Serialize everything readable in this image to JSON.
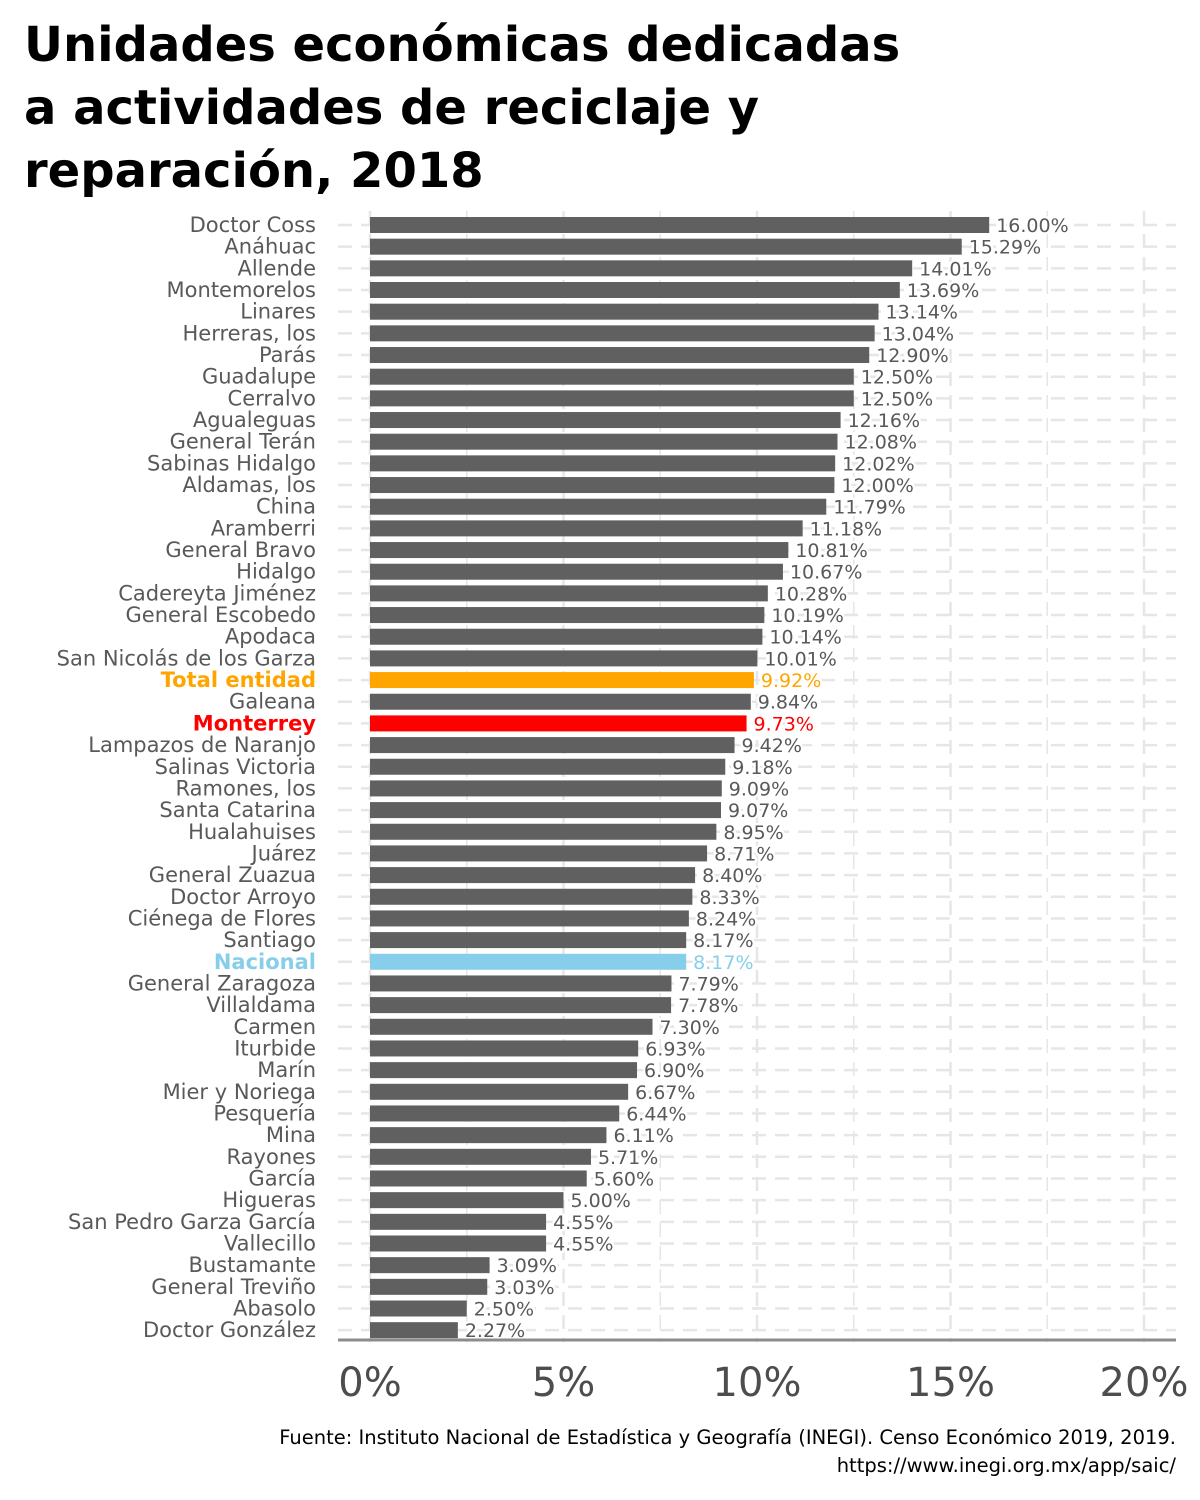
{
  "title_lines": [
    "Unidades económicas dedicadas",
    "a actividades de reciclaje y",
    "reparación, 2018"
  ],
  "source_lines": [
    "Fuente: Instituto Nacional de Estadística y Geografía (INEGI). Censo Económico 2019, 2019.",
    "https://www.inegi.org.mx/app/saic/"
  ],
  "colors": {
    "default_bar": "#606060",
    "default_label": "#595959",
    "total_entidad": "#FFA500",
    "monterrey": "#FF0000",
    "nacional": "#87CEEB",
    "grid": "#e6e6e6",
    "axis": "#8c8c8c",
    "tick_text": "#4d4d4d"
  },
  "chart_data": {
    "type": "bar",
    "orientation": "horizontal",
    "xlim": [
      0,
      20
    ],
    "x_ticks": [
      0,
      5,
      10,
      15,
      20
    ],
    "x_tick_labels": [
      "0%",
      "5%",
      "10%",
      "15%",
      "20%"
    ],
    "xlabel": "",
    "ylabel": "",
    "grid": true,
    "categories": [
      "Doctor Coss",
      "Anáhuac",
      "Allende",
      "Montemorelos",
      "Linares",
      "Herreras, los",
      "Parás",
      "Guadalupe",
      "Cerralvo",
      "Agualeguas",
      "General Terán",
      "Sabinas Hidalgo",
      "Aldamas, los",
      "China",
      "Aramberri",
      "General Bravo",
      "Hidalgo",
      "Cadereyta Jiménez",
      "General Escobedo",
      "Apodaca",
      "San Nicolás de los Garza",
      "Total entidad",
      "Galeana",
      "Monterrey",
      "Lampazos de Naranjo",
      "Salinas Victoria",
      "Ramones, los",
      "Santa Catarina",
      "Hualahuises",
      "Juárez",
      "General Zuazua",
      "Doctor Arroyo",
      "Ciénega de Flores",
      "Santiago",
      "Nacional",
      "General Zaragoza",
      "Villaldama",
      "Carmen",
      "Iturbide",
      "Marín",
      "Mier y Noriega",
      "Pesquería",
      "Mina",
      "Rayones",
      "García",
      "Higueras",
      "San Pedro Garza García",
      "Vallecillo",
      "Bustamante",
      "General Treviño",
      "Abasolo",
      "Doctor González"
    ],
    "values": [
      16.0,
      15.29,
      14.01,
      13.69,
      13.14,
      13.04,
      12.9,
      12.5,
      12.5,
      12.16,
      12.08,
      12.02,
      12.0,
      11.79,
      11.18,
      10.81,
      10.67,
      10.28,
      10.19,
      10.14,
      10.01,
      9.92,
      9.84,
      9.73,
      9.42,
      9.18,
      9.09,
      9.07,
      8.95,
      8.71,
      8.4,
      8.33,
      8.24,
      8.17,
      8.17,
      7.79,
      7.78,
      7.3,
      6.93,
      6.9,
      6.67,
      6.44,
      6.11,
      5.71,
      5.6,
      5.0,
      4.55,
      4.55,
      3.09,
      3.03,
      2.5,
      2.27
    ],
    "value_labels": [
      "16.00%",
      "15.29%",
      "14.01%",
      "13.69%",
      "13.14%",
      "13.04%",
      "12.90%",
      "12.50%",
      "12.50%",
      "12.16%",
      "12.08%",
      "12.02%",
      "12.00%",
      "11.79%",
      "11.18%",
      "10.81%",
      "10.67%",
      "10.28%",
      "10.19%",
      "10.14%",
      "10.01%",
      "9.92%",
      "9.84%",
      "9.73%",
      "9.42%",
      "9.18%",
      "9.09%",
      "9.07%",
      "8.95%",
      "8.71%",
      "8.40%",
      "8.33%",
      "8.24%",
      "8.17%",
      "8.17%",
      "7.79%",
      "7.78%",
      "7.30%",
      "6.93%",
      "6.90%",
      "6.67%",
      "6.44%",
      "6.11%",
      "5.71%",
      "5.60%",
      "5.00%",
      "4.55%",
      "4.55%",
      "3.09%",
      "3.03%",
      "2.50%",
      "2.27%"
    ],
    "highlights": {
      "Total entidad": "total_entidad",
      "Monterrey": "monterrey",
      "Nacional": "nacional"
    }
  }
}
